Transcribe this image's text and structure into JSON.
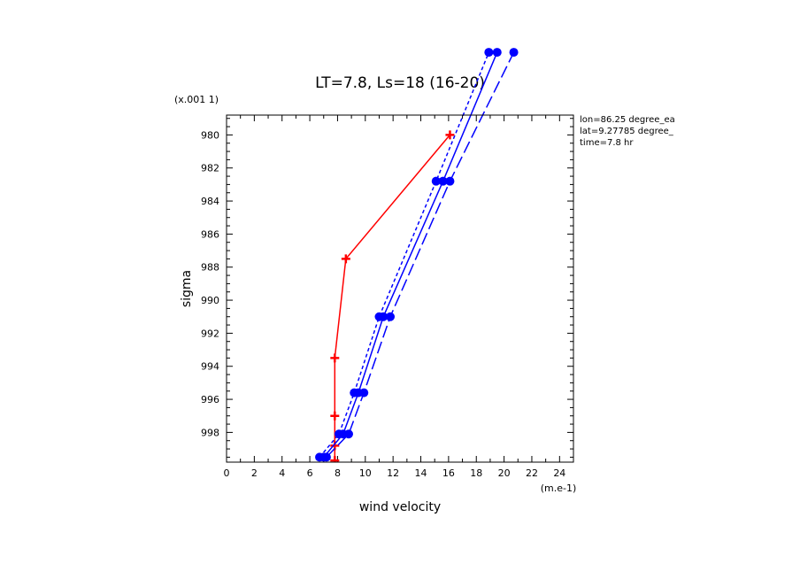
{
  "chart_data": {
    "type": "line",
    "title": "LT=7.8, Ls=18 (16-20)",
    "xlabel": "wind velocity",
    "ylabel": "sigma",
    "x_unit_label": "(m.e-1)",
    "y_unit_label": "(x.001 1)",
    "xlim": [
      0,
      25
    ],
    "ylim": [
      999.8,
      978.8
    ],
    "y_inverted": true,
    "x_ticks": [
      0,
      2,
      4,
      6,
      8,
      10,
      12,
      14,
      16,
      18,
      20,
      22,
      24
    ],
    "y_ticks": [
      980,
      982,
      984,
      986,
      988,
      990,
      992,
      994,
      996,
      998
    ],
    "grid": false,
    "info_lines": [
      "lon=86.25 degree_ea",
      "lat=9.27785 degree_",
      "time=7.8 hr"
    ],
    "series": [
      {
        "color": "#ff0000",
        "style": "solid",
        "marker": "plus",
        "points": [
          [
            7.8,
            999.7
          ],
          [
            7.8,
            998.8
          ],
          [
            7.8,
            997.0
          ],
          [
            7.8,
            993.5
          ],
          [
            8.6,
            987.5
          ],
          [
            16.1,
            980.0
          ]
        ]
      },
      {
        "color": "#0000ff",
        "style": "solid",
        "marker": "circle",
        "points": [
          [
            7.0,
            999.5
          ],
          [
            8.4,
            998.1
          ],
          [
            9.5,
            995.6
          ],
          [
            11.3,
            991.0
          ],
          [
            15.6,
            982.8
          ],
          [
            19.5,
            975.0
          ]
        ]
      },
      {
        "color": "#0000ff",
        "style": "short-dash",
        "marker": "circle",
        "points": [
          [
            6.7,
            999.5
          ],
          [
            8.1,
            998.1
          ],
          [
            9.2,
            995.6
          ],
          [
            11.0,
            991.0
          ],
          [
            15.1,
            982.8
          ],
          [
            18.9,
            975.0
          ]
        ]
      },
      {
        "color": "#0000ff",
        "style": "long-dash",
        "marker": "circle",
        "points": [
          [
            7.2,
            999.5
          ],
          [
            8.8,
            998.1
          ],
          [
            9.9,
            995.6
          ],
          [
            11.8,
            991.0
          ],
          [
            16.1,
            982.8
          ],
          [
            20.7,
            975.0
          ]
        ]
      }
    ]
  }
}
